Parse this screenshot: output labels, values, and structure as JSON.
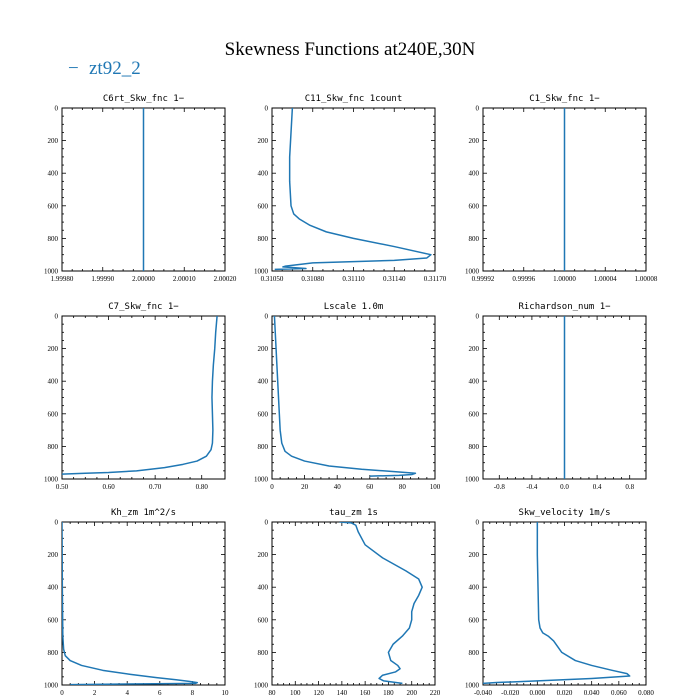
{
  "figure": {
    "title": "Skewness Functions at240E,30N",
    "legend": {
      "dash": "−",
      "label": "zt92_2",
      "color": "#1f77b4"
    }
  },
  "chart_data": [
    {
      "type": "line",
      "title": "C6rt_Skw_fnc  1−",
      "xlim": [
        1.9998,
        2.0002
      ],
      "xticks": [
        "1.99980",
        "1.99990",
        "2.00000",
        "2.00010",
        "2.00020"
      ],
      "xtick_values": [
        1.9998,
        1.9999,
        2.0,
        2.0001,
        2.0002
      ],
      "ylim": [
        0,
        1000
      ],
      "yticks": [
        "0",
        "200",
        "400",
        "600",
        "800",
        "1000"
      ],
      "series": [
        {
          "x": [
            2.0,
            2.0
          ],
          "y": [
            0,
            1000
          ]
        }
      ]
    },
    {
      "type": "line",
      "title": "C11_Skw_fnc  1count",
      "xlim": [
        0.3105,
        0.3117
      ],
      "xticks": [
        "0.31050",
        "0.31080",
        "0.31110",
        "0.31140",
        "0.31170"
      ],
      "xtick_values": [
        0.3105,
        0.3108,
        0.3111,
        0.3114,
        0.3117
      ],
      "ylim": [
        0,
        1000
      ],
      "yticks": [
        "0",
        "200",
        "400",
        "600",
        "800",
        "1000"
      ],
      "series": [
        {
          "x": [
            0.31065,
            0.31064,
            0.31063,
            0.31063,
            0.31064,
            0.31066,
            0.3107,
            0.31078,
            0.3109,
            0.3111,
            0.3114,
            0.31167,
            0.31164,
            0.3114,
            0.3108,
            0.3106,
            0.31058,
            0.31075,
            0.31052
          ],
          "y": [
            0,
            150,
            300,
            450,
            600,
            650,
            680,
            720,
            760,
            800,
            850,
            900,
            920,
            935,
            950,
            970,
            975,
            985,
            990
          ]
        }
      ]
    },
    {
      "type": "line",
      "title": "C1_Skw_fnc  1−",
      "xlim": [
        0.99992,
        1.00008
      ],
      "xticks": [
        "0.99992",
        "0.99996",
        "1.00000",
        "1.00004",
        "1.00008"
      ],
      "xtick_values": [
        0.99992,
        0.99996,
        1.0,
        1.00004,
        1.00008
      ],
      "ylim": [
        0,
        1000
      ],
      "yticks": [
        "0",
        "200",
        "400",
        "600",
        "800",
        "1000"
      ],
      "series": [
        {
          "x": [
            1.0,
            1.0
          ],
          "y": [
            0,
            1000
          ]
        }
      ]
    },
    {
      "type": "line",
      "title": "C7_Skw_fnc  1−",
      "xlim": [
        0.5,
        0.85
      ],
      "xticks": [
        "0.50",
        "0.60",
        "0.70",
        "0.80"
      ],
      "xtick_values": [
        0.5,
        0.6,
        0.7,
        0.8
      ],
      "ylim": [
        0,
        1000
      ],
      "yticks": [
        "0",
        "200",
        "400",
        "600",
        "800",
        "1000"
      ],
      "series": [
        {
          "x": [
            0.833,
            0.83,
            0.828,
            0.825,
            0.823,
            0.822,
            0.823,
            0.824,
            0.823,
            0.82,
            0.81,
            0.79,
            0.76,
            0.72,
            0.66,
            0.6,
            0.55,
            0.5
          ],
          "y": [
            0,
            100,
            200,
            300,
            400,
            500,
            600,
            700,
            780,
            820,
            860,
            890,
            910,
            930,
            950,
            960,
            965,
            970
          ]
        }
      ]
    },
    {
      "type": "line",
      "title": "Lscale  1.0m",
      "xlim": [
        0,
        100
      ],
      "xticks": [
        "0",
        "20",
        "40",
        "60",
        "80",
        "100"
      ],
      "xtick_values": [
        0,
        20,
        40,
        60,
        80,
        100
      ],
      "ylim": [
        0,
        1000
      ],
      "yticks": [
        "0",
        "200",
        "400",
        "600",
        "800",
        "1000"
      ],
      "series": [
        {
          "x": [
            1.5,
            2.5,
            3.5,
            4.5,
            5,
            6,
            8,
            12,
            20,
            35,
            55,
            75,
            88,
            86,
            78,
            60
          ],
          "y": [
            0,
            200,
            400,
            600,
            700,
            780,
            830,
            860,
            890,
            920,
            940,
            955,
            965,
            972,
            978,
            982
          ]
        }
      ]
    },
    {
      "type": "line",
      "title": "Richardson_num  1−",
      "xlim": [
        -1,
        1
      ],
      "xticks": [
        "-0.8",
        "-0.4",
        "0.0",
        "0.4",
        "0.8"
      ],
      "xtick_values": [
        -0.8,
        -0.4,
        0.0,
        0.4,
        0.8
      ],
      "ylim": [
        0,
        1000
      ],
      "yticks": [
        "0",
        "200",
        "400",
        "600",
        "800",
        "1000"
      ],
      "series": [
        {
          "x": [
            0.0,
            0.0
          ],
          "y": [
            0,
            1000
          ]
        }
      ]
    },
    {
      "type": "line",
      "title": "Kh_zm  1m^2/s",
      "xlim": [
        0,
        10
      ],
      "xticks": [
        "0",
        "2",
        "4",
        "6",
        "8",
        "10"
      ],
      "xtick_values": [
        0,
        2,
        4,
        6,
        8,
        10
      ],
      "ylim": [
        0,
        1000
      ],
      "yticks": [
        "0",
        "200",
        "400",
        "600",
        "800",
        "1000"
      ],
      "series": [
        {
          "x": [
            0,
            0.02,
            0.05,
            0.1,
            0.2,
            0.5,
            1.2,
            2.5,
            4.2,
            5.8,
            7,
            7.8,
            8.3,
            8.2,
            4,
            0.5
          ],
          "y": [
            0,
            400,
            700,
            780,
            820,
            850,
            880,
            910,
            935,
            955,
            968,
            978,
            985,
            990,
            994,
            998
          ]
        }
      ]
    },
    {
      "type": "line",
      "title": "tau_zm  1s",
      "xlim": [
        80,
        220
      ],
      "xticks": [
        "80",
        "100",
        "120",
        "140",
        "160",
        "180",
        "200",
        "220"
      ],
      "xtick_values": [
        80,
        100,
        120,
        140,
        160,
        180,
        200,
        220
      ],
      "ylim": [
        0,
        1000
      ],
      "yticks": [
        "0",
        "200",
        "400",
        "600",
        "800",
        "1000"
      ],
      "series": [
        {
          "x": [
            138,
            148,
            152,
            154,
            160,
            175,
            195,
            206,
            209,
            206,
            202,
            200,
            200,
            198,
            192,
            184,
            180,
            182,
            188,
            190,
            186,
            175,
            172,
            176,
            192
          ],
          "y": [
            0,
            5,
            20,
            60,
            140,
            220,
            300,
            350,
            400,
            450,
            500,
            550,
            600,
            650,
            700,
            750,
            800,
            850,
            880,
            900,
            920,
            940,
            960,
            975,
            990
          ]
        }
      ]
    },
    {
      "type": "line",
      "title": "Skw_velocity  1m/s",
      "xlim": [
        -0.04,
        0.08
      ],
      "xticks": [
        "-0.040",
        "-0.020",
        "0.000",
        "0.020",
        "0.040",
        "0.060",
        "0.080"
      ],
      "xtick_values": [
        -0.04,
        -0.02,
        0.0,
        0.02,
        0.04,
        0.06,
        0.08
      ],
      "ylim": [
        0,
        1000
      ],
      "yticks": [
        "0",
        "200",
        "400",
        "600",
        "800",
        "1000"
      ],
      "series": [
        {
          "x": [
            0.0,
            0.0,
            0.0005,
            0.001,
            0.002,
            0.004,
            0.008,
            0.012,
            0.018,
            0.028,
            0.04,
            0.055,
            0.066,
            0.068,
            0.04,
            0.0,
            -0.03,
            -0.04
          ],
          "y": [
            0,
            200,
            400,
            600,
            650,
            680,
            700,
            730,
            800,
            850,
            880,
            910,
            930,
            945,
            960,
            975,
            985,
            990
          ]
        }
      ]
    }
  ]
}
